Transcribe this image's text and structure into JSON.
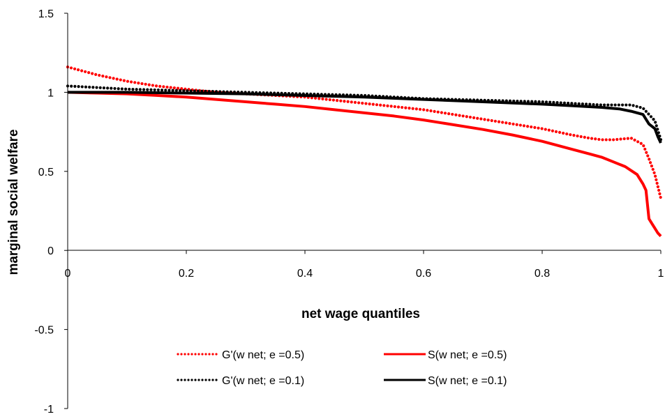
{
  "chart_data": {
    "type": "line",
    "title": "",
    "xlabel": "net wage quantiles",
    "ylabel": "marginal social welfare",
    "xlim": [
      0,
      1
    ],
    "ylim": [
      -1,
      1.5
    ],
    "x_ticks": [
      0,
      0.2,
      0.4,
      0.6,
      0.8,
      1
    ],
    "x_tick_labels": [
      "0",
      "0.2",
      "0.4",
      "0.6",
      "0.8",
      "1"
    ],
    "y_ticks": [
      -1,
      -0.5,
      0,
      0.5,
      1,
      1.5
    ],
    "y_tick_labels": [
      "-1",
      "-0.5",
      "0",
      "0.5",
      "1",
      "1.5"
    ],
    "grid": false,
    "legend_position": "lower-center",
    "series": [
      {
        "name": "G'(w net; e =0.5)",
        "color": "#ff0000",
        "style": "dotted",
        "x": [
          0,
          0.05,
          0.1,
          0.15,
          0.2,
          0.25,
          0.3,
          0.35,
          0.4,
          0.45,
          0.5,
          0.55,
          0.6,
          0.65,
          0.7,
          0.75,
          0.8,
          0.85,
          0.88,
          0.9,
          0.92,
          0.95,
          0.97,
          0.98,
          0.99,
          1.0
        ],
        "y": [
          1.16,
          1.11,
          1.07,
          1.04,
          1.02,
          1.0,
          0.99,
          0.98,
          0.97,
          0.95,
          0.93,
          0.91,
          0.89,
          0.86,
          0.83,
          0.8,
          0.77,
          0.73,
          0.71,
          0.7,
          0.7,
          0.71,
          0.67,
          0.58,
          0.48,
          0.33
        ]
      },
      {
        "name": "G'(w net; e =0.1)",
        "color": "#000000",
        "style": "dotted",
        "x": [
          0,
          0.05,
          0.1,
          0.2,
          0.3,
          0.4,
          0.5,
          0.6,
          0.7,
          0.8,
          0.85,
          0.9,
          0.93,
          0.95,
          0.97,
          0.98,
          0.99,
          1.0
        ],
        "y": [
          1.04,
          1.03,
          1.02,
          1.01,
          1.0,
          0.99,
          0.98,
          0.96,
          0.95,
          0.94,
          0.93,
          0.92,
          0.92,
          0.92,
          0.9,
          0.86,
          0.82,
          0.7
        ]
      },
      {
        "name": "S(w net; e =0.5)",
        "color": "#ff0000",
        "style": "solid",
        "x": [
          0,
          0.05,
          0.1,
          0.15,
          0.2,
          0.25,
          0.3,
          0.35,
          0.4,
          0.45,
          0.5,
          0.55,
          0.6,
          0.65,
          0.7,
          0.75,
          0.8,
          0.85,
          0.88,
          0.9,
          0.92,
          0.94,
          0.96,
          0.97,
          0.975,
          0.98,
          0.985,
          0.99,
          0.995,
          1.0
        ],
        "y": [
          1.0,
          0.995,
          0.99,
          0.98,
          0.97,
          0.955,
          0.94,
          0.925,
          0.91,
          0.89,
          0.87,
          0.85,
          0.825,
          0.795,
          0.765,
          0.73,
          0.69,
          0.64,
          0.61,
          0.59,
          0.56,
          0.53,
          0.48,
          0.42,
          0.38,
          0.2,
          0.17,
          0.14,
          0.11,
          0.09
        ]
      },
      {
        "name": "S(w net; e =0.1)",
        "color": "#000000",
        "style": "solid",
        "x": [
          0,
          0.1,
          0.2,
          0.3,
          0.4,
          0.5,
          0.6,
          0.7,
          0.8,
          0.85,
          0.9,
          0.93,
          0.95,
          0.97,
          0.98,
          0.99,
          0.995,
          1.0
        ],
        "y": [
          1.0,
          1.0,
          0.995,
          0.99,
          0.98,
          0.97,
          0.955,
          0.94,
          0.925,
          0.915,
          0.905,
          0.895,
          0.88,
          0.86,
          0.8,
          0.77,
          0.72,
          0.68
        ]
      }
    ]
  }
}
